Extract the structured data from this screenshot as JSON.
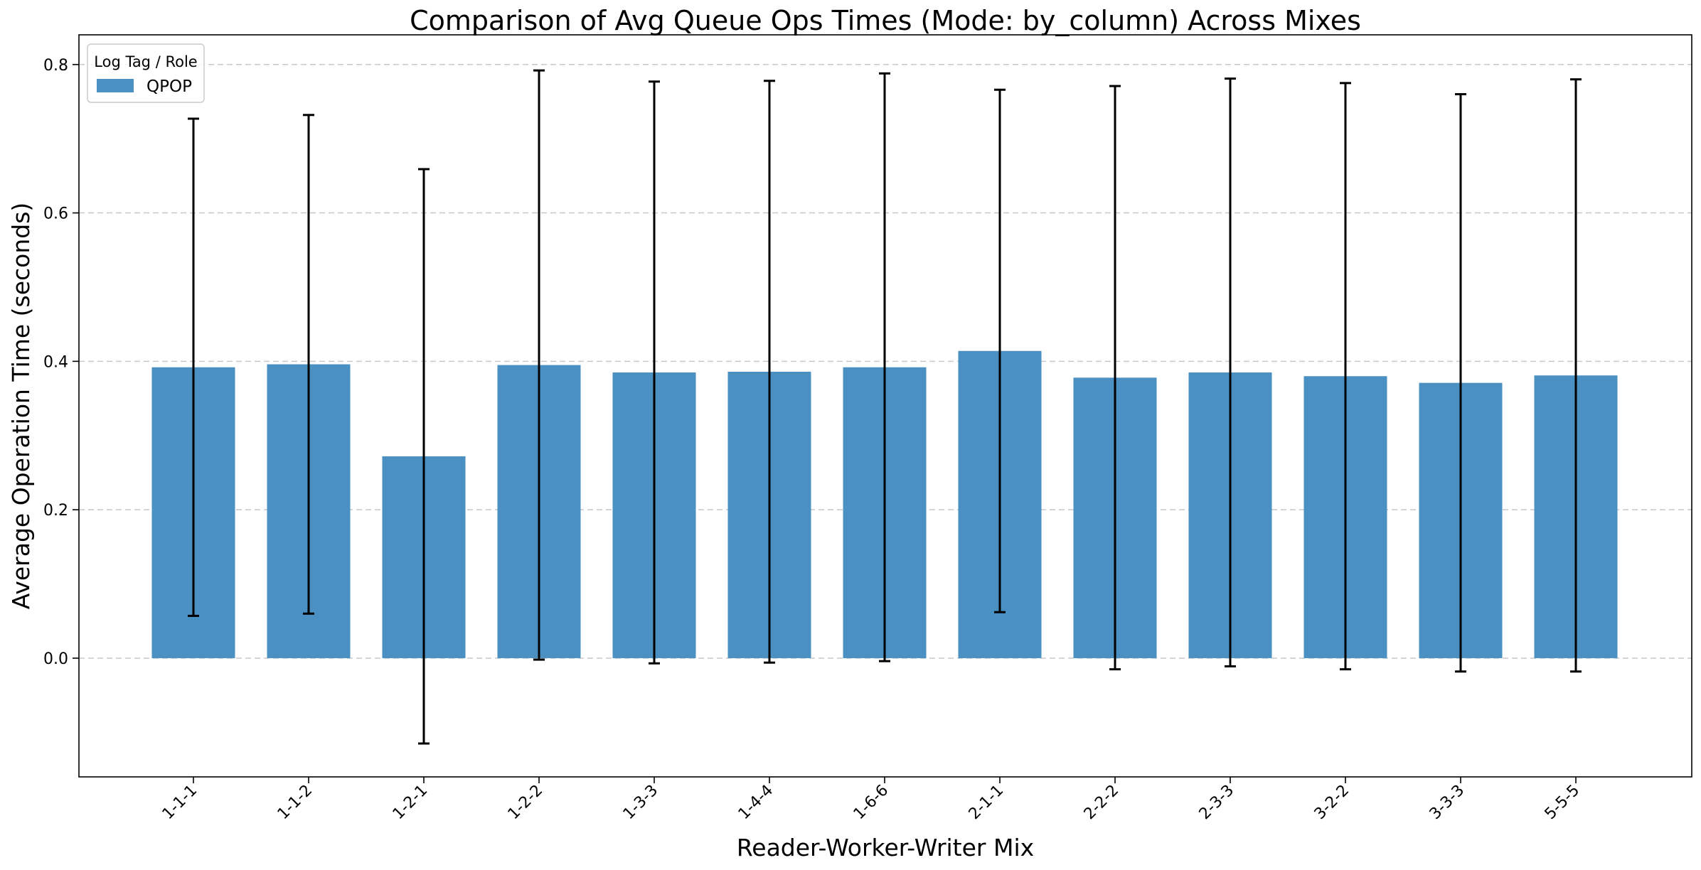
{
  "chart_data": {
    "type": "bar",
    "title": "Comparison of Avg Queue Ops Times (Mode: by_column) Across Mixes",
    "xlabel": "Reader-Worker-Writer Mix",
    "ylabel": "Average Operation Time (seconds)",
    "ylim": [
      -0.16,
      0.84
    ],
    "yticks": [
      "0.0",
      "0.2",
      "0.4",
      "0.6",
      "0.8"
    ],
    "grid": "horizontal dashed",
    "legend": {
      "title": "Log Tag / Role",
      "placement": "top-left",
      "entries": [
        {
          "label": "QPOP",
          "color": "#4a90c2"
        }
      ]
    },
    "categories": [
      "1-1-1",
      "1-1-2",
      "1-2-1",
      "1-2-2",
      "1-3-3",
      "1-4-4",
      "1-6-6",
      "2-1-1",
      "2-2-2",
      "2-3-3",
      "3-2-2",
      "3-3-3",
      "5-5-5"
    ],
    "series": [
      {
        "name": "QPOP",
        "color": "#4a90c2",
        "values": [
          0.392,
          0.396,
          0.272,
          0.395,
          0.385,
          0.386,
          0.392,
          0.414,
          0.378,
          0.385,
          0.38,
          0.371,
          0.381
        ],
        "error": [
          0.335,
          0.336,
          0.387,
          0.397,
          0.392,
          0.392,
          0.396,
          0.352,
          0.393,
          0.396,
          0.395,
          0.389,
          0.399
        ]
      }
    ]
  }
}
